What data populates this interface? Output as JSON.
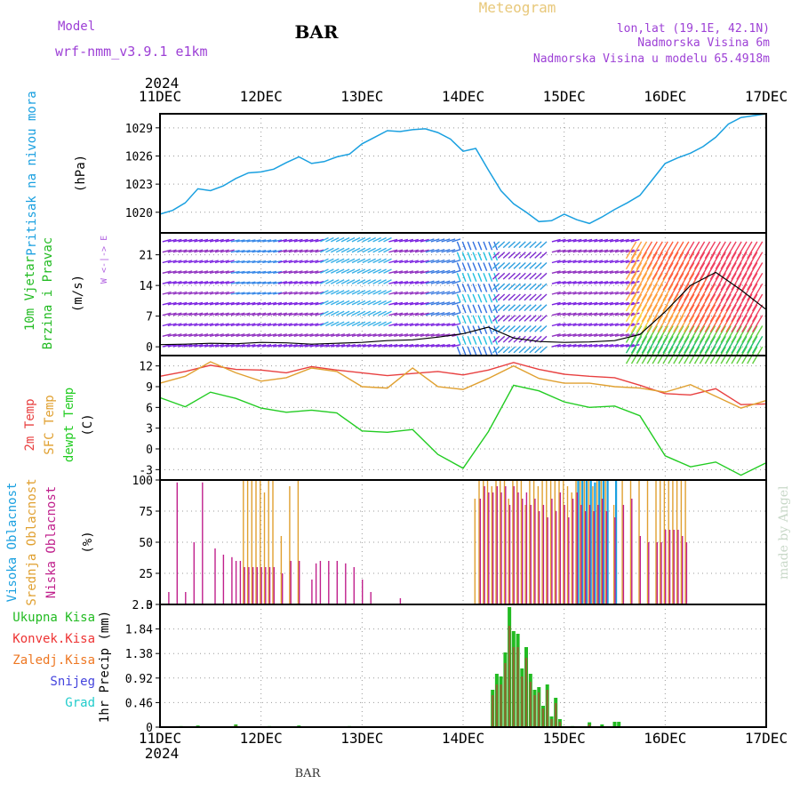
{
  "header": {
    "model_label": "Model",
    "model_name": "wrf-nmm_v3.9.1  e1km",
    "station": "BAR",
    "app_title": "Meteogram",
    "coords": "lon,lat (19.1E, 42.1N)",
    "elevation": "Nadmorska Visina 6m",
    "model_elevation": "Nadmorska Visina u modelu 65.4918m"
  },
  "footer": {
    "station": "BAR",
    "credit": "made by Angel"
  },
  "colors": {
    "pressure": "#1aa0e0",
    "wind_label": "#22bb22",
    "t2m": "#e84040",
    "tsfc": "#e0a030",
    "dewpt": "#22cc22",
    "cloud_high": "#1aa0e0",
    "cloud_mid": "#e0a030",
    "cloud_low": "#c0208c",
    "grid": "#999999"
  },
  "chart_data": [
    {
      "id": "time_axis",
      "type": "line",
      "year": "2024",
      "x_ticks": [
        "11DEC",
        "12DEC",
        "13DEC",
        "14DEC",
        "15DEC",
        "16DEC",
        "17DEC"
      ],
      "xlim": [
        0,
        144
      ]
    },
    {
      "id": "pressure",
      "type": "line",
      "ylabel_a": "Pritisak na nivou mora",
      "ylabel_b": "(hPa)",
      "y_ticks": [
        "1020",
        "1023",
        "1026",
        "1029"
      ],
      "ylim": [
        1017.8,
        1030.5
      ],
      "x": [
        0,
        3,
        6,
        9,
        12,
        15,
        18,
        21,
        24,
        27,
        30,
        33,
        36,
        39,
        42,
        45,
        48,
        51,
        54,
        57,
        60,
        63,
        66,
        69,
        72,
        75,
        78,
        81,
        84,
        87,
        90,
        93,
        96,
        99,
        102,
        105,
        108,
        111,
        114,
        117,
        120,
        123,
        126,
        129,
        132,
        135,
        138,
        141,
        144
      ],
      "series": [
        {
          "name": "",
          "values": [
            1019.8,
            1020.2,
            1021.0,
            1022.5,
            1022.3,
            1022.8,
            1023.6,
            1024.2,
            1024.3,
            1024.6,
            1025.3,
            1025.9,
            1025.2,
            1025.4,
            1025.9,
            1026.2,
            1027.3,
            1028.0,
            1028.7,
            1028.6,
            1028.8,
            1028.9,
            1028.5,
            1027.8,
            1026.5,
            1026.8,
            1024.5,
            1022.3,
            1020.9,
            1020.0,
            1019.0,
            1019.1,
            1019.8,
            1019.2,
            1018.8,
            1019.5,
            1020.3,
            1021.0,
            1021.8,
            1023.5,
            1025.2,
            1025.8,
            1026.3,
            1027.0,
            1028.0,
            1029.4,
            1030.1,
            1030.3,
            1030.5
          ]
        }
      ]
    },
    {
      "id": "wind",
      "type": "line",
      "ylabel_a": "10m Vjetar",
      "ylabel_b": "Brzina i Pravac",
      "ylabel_c": "(m/s)",
      "compass_hint": "W <-|-> E",
      "y_ticks": [
        "0",
        "7",
        "14",
        "21"
      ],
      "ylim": [
        -2,
        26
      ],
      "x": [
        0,
        6,
        12,
        18,
        24,
        30,
        36,
        42,
        48,
        54,
        60,
        66,
        72,
        78,
        84,
        90,
        96,
        102,
        108,
        114,
        120,
        126,
        132,
        138,
        144
      ],
      "series": [
        {
          "name": "",
          "values": [
            0.5,
            0.6,
            0.8,
            0.7,
            1.0,
            0.9,
            0.6,
            0.8,
            1.0,
            1.4,
            1.6,
            2.2,
            3.0,
            4.5,
            2.0,
            1.2,
            1.0,
            1.1,
            1.4,
            2.8,
            8.0,
            14.0,
            17.0,
            13.0,
            8.5
          ]
        }
      ]
    },
    {
      "id": "temperature",
      "type": "line",
      "ylabel_a": "2m Temp",
      "ylabel_b": "SFC Temp",
      "ylabel_c": "dewpt Temp",
      "ylabel_unit": "(C)",
      "y_ticks": [
        "-3",
        "0",
        "3",
        "6",
        "9",
        "12"
      ],
      "ylim": [
        -4.5,
        13.5
      ],
      "x": [
        0,
        6,
        12,
        18,
        24,
        30,
        36,
        42,
        48,
        54,
        60,
        66,
        72,
        78,
        84,
        90,
        96,
        102,
        108,
        114,
        120,
        126,
        132,
        138,
        144
      ],
      "series": [
        {
          "name": "2m Temp",
          "values": [
            10.5,
            11.2,
            12.1,
            11.5,
            11.4,
            11.0,
            11.9,
            11.4,
            11.0,
            10.6,
            10.9,
            11.2,
            10.7,
            11.4,
            12.5,
            11.5,
            10.8,
            10.5,
            10.3,
            9.2,
            8.0,
            7.8,
            8.7,
            6.4,
            6.5
          ]
        },
        {
          "name": "SFC Temp",
          "values": [
            9.5,
            10.5,
            12.6,
            11.0,
            9.8,
            10.3,
            11.7,
            11.2,
            9.0,
            8.8,
            11.7,
            9.0,
            8.6,
            10.2,
            12.0,
            10.2,
            9.5,
            9.5,
            9.0,
            8.8,
            8.2,
            9.3,
            7.6,
            5.9,
            7.0
          ]
        },
        {
          "name": "dewpt Temp",
          "values": [
            7.4,
            6.1,
            8.2,
            7.3,
            5.9,
            5.3,
            5.6,
            5.2,
            2.6,
            2.4,
            2.8,
            -0.8,
            -2.8,
            2.5,
            9.2,
            8.4,
            6.8,
            6.0,
            6.2,
            4.8,
            -1.0,
            -2.6,
            -1.9,
            -3.8,
            -2.0
          ]
        }
      ]
    },
    {
      "id": "cloud_cover",
      "type": "bar",
      "ylabel_a": "Visoka Oblacnost",
      "ylabel_b": "Srednja Oblacnost",
      "ylabel_c": "Niska Oblacnost",
      "ylabel_unit": "(%)",
      "y_ticks": [
        "0",
        "25",
        "50",
        "75",
        "100"
      ],
      "ylim": [
        0,
        100
      ],
      "x": [
        2,
        4,
        6,
        8,
        10,
        13,
        15,
        17,
        18,
        19,
        20,
        21,
        22,
        23,
        24,
        25,
        26,
        27,
        29,
        31,
        33,
        36,
        37,
        38,
        40,
        42,
        44,
        46,
        48,
        50,
        57,
        73,
        75,
        76,
        77,
        78,
        79,
        80,
        81,
        82,
        83,
        84,
        85,
        86,
        87,
        88,
        89,
        90,
        91,
        92,
        93,
        94,
        95,
        96,
        97,
        98,
        99,
        100,
        101,
        102,
        103,
        104,
        105,
        106,
        108,
        110,
        112,
        114,
        116,
        118,
        119,
        120,
        121,
        122,
        123,
        124,
        125
      ],
      "series": [
        {
          "name": "Visoka Oblacnost",
          "values": [
            0,
            0,
            0,
            0,
            0,
            0,
            0,
            0,
            0,
            0,
            0,
            0,
            0,
            0,
            0,
            0,
            0,
            0,
            0,
            0,
            0,
            0,
            0,
            0,
            0,
            0,
            0,
            0,
            0,
            0,
            0,
            0,
            0,
            0,
            0,
            0,
            0,
            0,
            0,
            0,
            0,
            0,
            0,
            0,
            0,
            0,
            0,
            0,
            0,
            0,
            0,
            0,
            0,
            0,
            0,
            0,
            100,
            100,
            100,
            100,
            98,
            100,
            100,
            100,
            100,
            0,
            0,
            0,
            0,
            0,
            0,
            0,
            0,
            0,
            0,
            0,
            0
          ]
        },
        {
          "name": "Srednja Oblacnost",
          "values": [
            0,
            0,
            0,
            0,
            0,
            0,
            0,
            0,
            0,
            0,
            100,
            100,
            100,
            100,
            100,
            90,
            100,
            100,
            55,
            95,
            100,
            0,
            0,
            0,
            0,
            0,
            0,
            0,
            0,
            0,
            0,
            0,
            85,
            100,
            100,
            100,
            95,
            100,
            100,
            100,
            85,
            100,
            100,
            100,
            80,
            100,
            100,
            95,
            100,
            100,
            100,
            100,
            100,
            100,
            95,
            90,
            100,
            100,
            100,
            100,
            95,
            100,
            100,
            100,
            80,
            100,
            100,
            100,
            100,
            100,
            100,
            100,
            100,
            100,
            100,
            100,
            100
          ]
        },
        {
          "name": "Niska Oblacnost",
          "values": [
            10,
            98,
            10,
            50,
            98,
            45,
            40,
            38,
            35,
            35,
            30,
            30,
            30,
            30,
            30,
            30,
            30,
            30,
            25,
            35,
            35,
            20,
            33,
            35,
            35,
            35,
            33,
            30,
            20,
            10,
            5,
            0,
            0,
            85,
            95,
            90,
            90,
            95,
            90,
            95,
            80,
            95,
            90,
            85,
            90,
            80,
            85,
            75,
            80,
            70,
            85,
            75,
            90,
            80,
            70,
            85,
            90,
            80,
            75,
            80,
            75,
            80,
            85,
            75,
            70,
            80,
            85,
            55,
            50,
            50,
            50,
            60,
            60,
            60,
            60,
            55,
            50
          ]
        }
      ]
    },
    {
      "id": "precipitation",
      "type": "bar",
      "legend": [
        "Ukupna Kisa",
        "Konvek.Kisa",
        "Zaledj.Kisa",
        "Snijeg",
        "Grad"
      ],
      "legend_colors": [
        "#22bb22",
        "#ee3333",
        "#ee7722",
        "#4444dd",
        "#22cccc"
      ],
      "ylabel": "1hr Precip (mm)",
      "y_ticks": [
        "0",
        "0.46",
        "0.92",
        "1.38",
        "1.84",
        "2.3"
      ],
      "ylim": [
        0,
        2.3
      ],
      "x": [
        5,
        9,
        18,
        26,
        33,
        45,
        50,
        56,
        79,
        80,
        81,
        82,
        83,
        84,
        85,
        86,
        87,
        88,
        89,
        90,
        91,
        92,
        93,
        94,
        95,
        98,
        102,
        105,
        108,
        109
      ],
      "series": [
        {
          "name": "Ukupna Kisa",
          "values": [
            0.02,
            0.03,
            0.05,
            0.02,
            0.03,
            0.02,
            0.01,
            0.01,
            0.7,
            1.0,
            0.95,
            1.4,
            2.25,
            1.8,
            1.75,
            1.1,
            1.5,
            1.0,
            0.7,
            0.75,
            0.4,
            0.8,
            0.2,
            0.55,
            0.15,
            0.02,
            0.09,
            0.05,
            0.1,
            0.1
          ]
        },
        {
          "name": "Konvek.Kisa",
          "values": [
            0,
            0,
            0.03,
            0,
            0,
            0,
            0,
            0,
            0.6,
            0.8,
            0.8,
            1.2,
            1.9,
            1.5,
            1.5,
            0.95,
            1.3,
            0.85,
            0.6,
            0.65,
            0.35,
            0.7,
            0.15,
            0.45,
            0.1,
            0,
            0.05,
            0,
            0,
            0
          ]
        }
      ]
    }
  ]
}
